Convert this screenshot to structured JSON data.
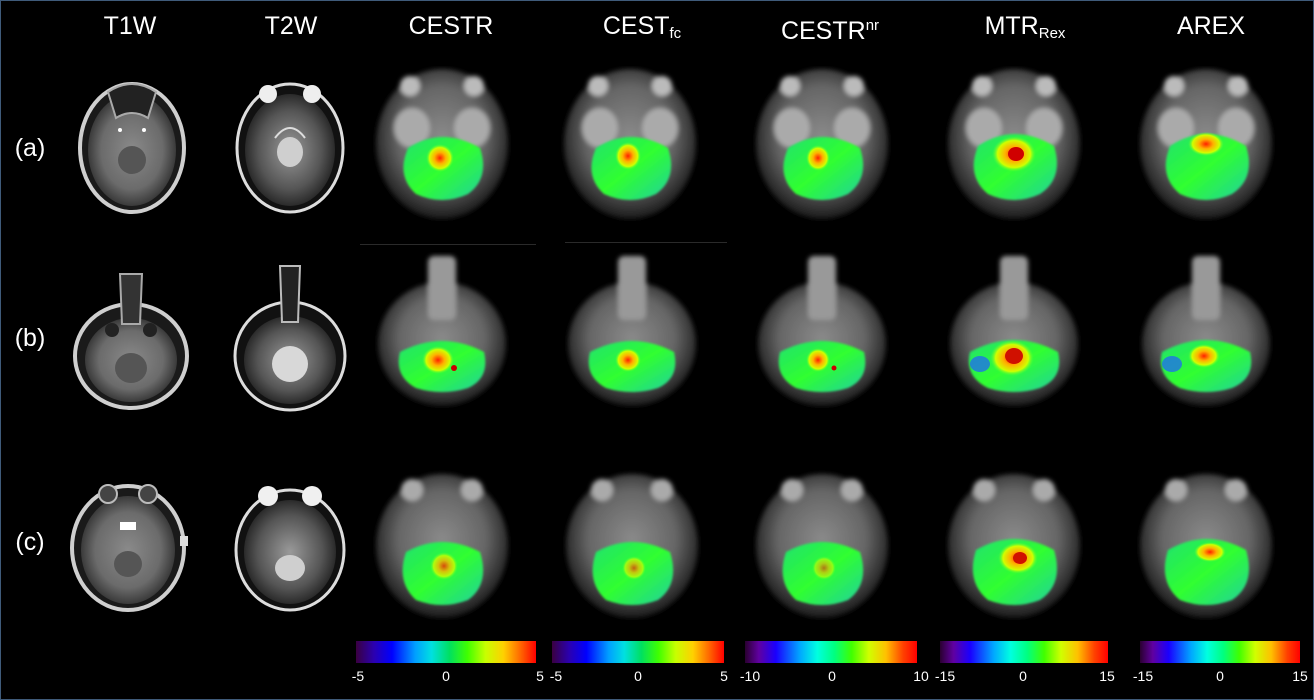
{
  "columns": {
    "t1w": {
      "label": "T1W"
    },
    "t2w": {
      "label": "T2W"
    },
    "cestr": {
      "label": "CESTR"
    },
    "cestfc": {
      "base": "CEST",
      "sub": "fc"
    },
    "cestrnr": {
      "base": "CESTR",
      "sup": "nr"
    },
    "mtrrex": {
      "base": "MTR",
      "sub": "Rex"
    },
    "arex": {
      "label": "AREX"
    }
  },
  "rows": [
    {
      "label": "(a)"
    },
    {
      "label": "(b)"
    },
    {
      "label": "(c)"
    }
  ],
  "colorbars": [
    {
      "min": "-5",
      "mid": "0",
      "max": "5"
    },
    {
      "min": "-5",
      "mid": "0",
      "max": "5"
    },
    {
      "min": "-10",
      "mid": "0",
      "max": "10"
    },
    {
      "min": "-15",
      "mid": "0",
      "max": "15"
    },
    {
      "min": "-15",
      "mid": "0",
      "max": "15"
    }
  ]
}
